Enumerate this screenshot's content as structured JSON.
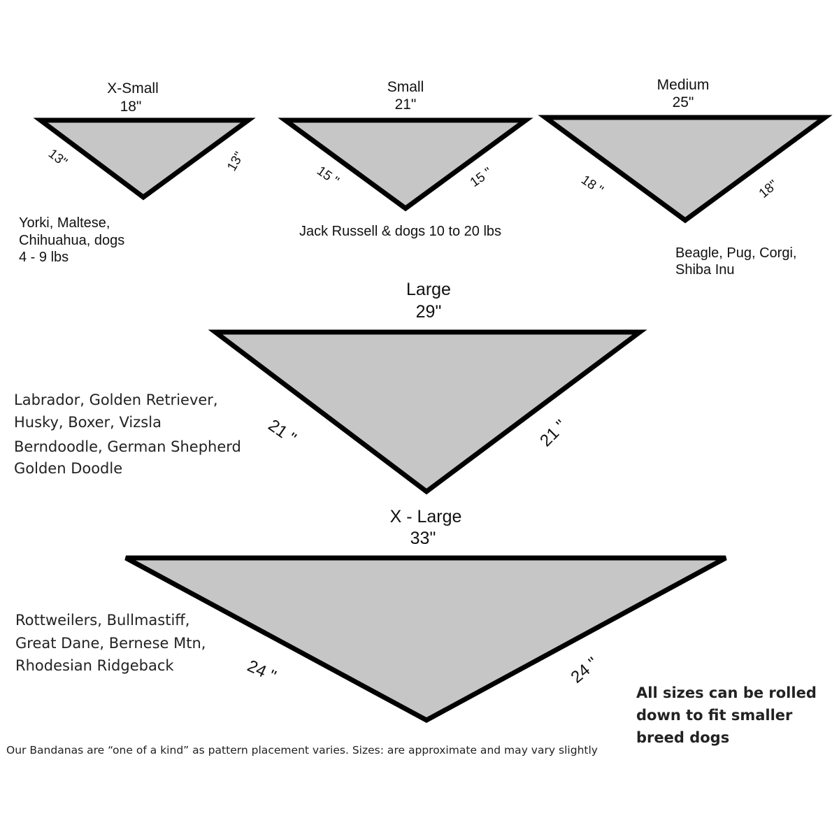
{
  "colors": {
    "fill": "#c6c6c6",
    "outline": "#000000"
  },
  "sizes": [
    {
      "name": "X-Small",
      "width": "18\"",
      "left": "13\"",
      "right": "13\"",
      "breeds": [
        "Yorki, Maltese,",
        "Chihuahua, dogs",
        "4 - 9 lbs"
      ]
    },
    {
      "name": "Small",
      "width": "21\"",
      "left": "15 \"",
      "right": "15 \"",
      "breeds": [
        "Jack Russell & dogs 10 to 20 lbs"
      ]
    },
    {
      "name": "Medium",
      "width": "25\"",
      "left": "18 \"",
      "right": "18\"",
      "breeds": [
        "Beagle, Pug, Corgi,",
        "Shiba Inu"
      ]
    },
    {
      "name": "Large",
      "width": "29\"",
      "left": "21 \"",
      "right": "21 \"",
      "breeds": [
        "Labrador, Golden Retriever,",
        "Husky, Boxer, Vizsla",
        "Berndoodle, German Shepherd",
        "Golden Doodle"
      ]
    },
    {
      "name": "X - Large",
      "width": "33\"",
      "left": "24 \"",
      "right": "24 \"",
      "breeds": [
        "Rottweilers, Bullmastiff,",
        "Great Dane, Bernese Mtn,",
        "Rhodesian Ridgeback"
      ]
    }
  ],
  "note": [
    "All sizes can be rolled",
    "down to fit smaller",
    "breed dogs"
  ],
  "footer": "Our Bandanas are “one of a kind” as pattern placement varies. Sizes: are approximate and may vary slightly"
}
